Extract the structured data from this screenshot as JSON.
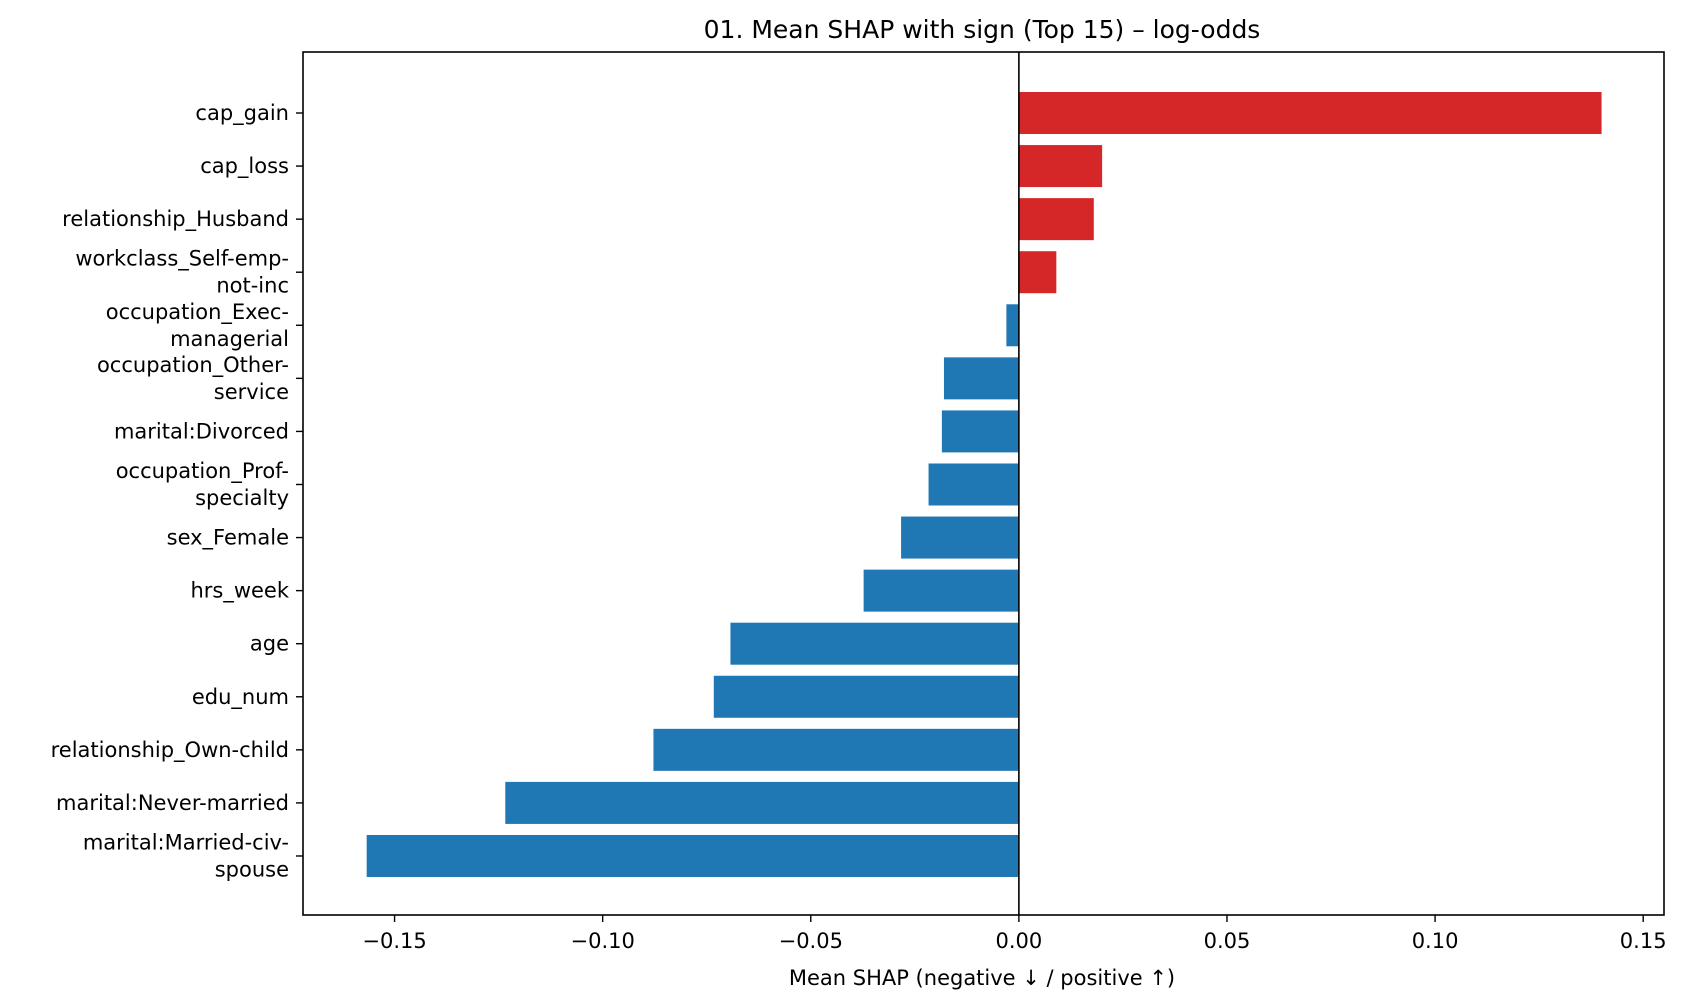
{
  "chart_data": {
    "type": "bar",
    "orientation": "horizontal",
    "title": "01. Mean SHAP with sign (Top 15) – log-odds",
    "xlabel": "Mean SHAP (negative ↓  / positive ↑)",
    "ylabel": "",
    "xlim": [
      -0.172,
      0.155
    ],
    "xticks": [
      -0.15,
      -0.1,
      -0.05,
      0.0,
      0.05,
      0.1,
      0.15
    ],
    "xtick_labels": [
      "−0.15",
      "−0.10",
      "−0.05",
      "0.00",
      "0.05",
      "0.10",
      "0.15"
    ],
    "grid": false,
    "zero_line": true,
    "colors": {
      "positive": "#d62728",
      "negative": "#1f77b4"
    },
    "categories": [
      [
        "cap_gain"
      ],
      [
        "cap_loss"
      ],
      [
        "relationship_Husband"
      ],
      [
        "workclass_Self-emp-",
        "not-inc"
      ],
      [
        "occupation_Exec-",
        "managerial"
      ],
      [
        "occupation_Other-",
        "service"
      ],
      [
        "marital:Divorced"
      ],
      [
        "occupation_Prof-",
        "specialty"
      ],
      [
        "sex_Female"
      ],
      [
        "hrs_week"
      ],
      [
        "age"
      ],
      [
        "edu_num"
      ],
      [
        "relationship_Own-child"
      ],
      [
        "marital:Never-married"
      ],
      [
        "marital:Married-civ-",
        "spouse"
      ]
    ],
    "values": [
      0.14,
      0.02,
      0.018,
      0.009,
      -0.003,
      -0.018,
      -0.0185,
      -0.0217,
      -0.0283,
      -0.0373,
      -0.0693,
      -0.0733,
      -0.0878,
      -0.1234,
      -0.1567
    ]
  }
}
